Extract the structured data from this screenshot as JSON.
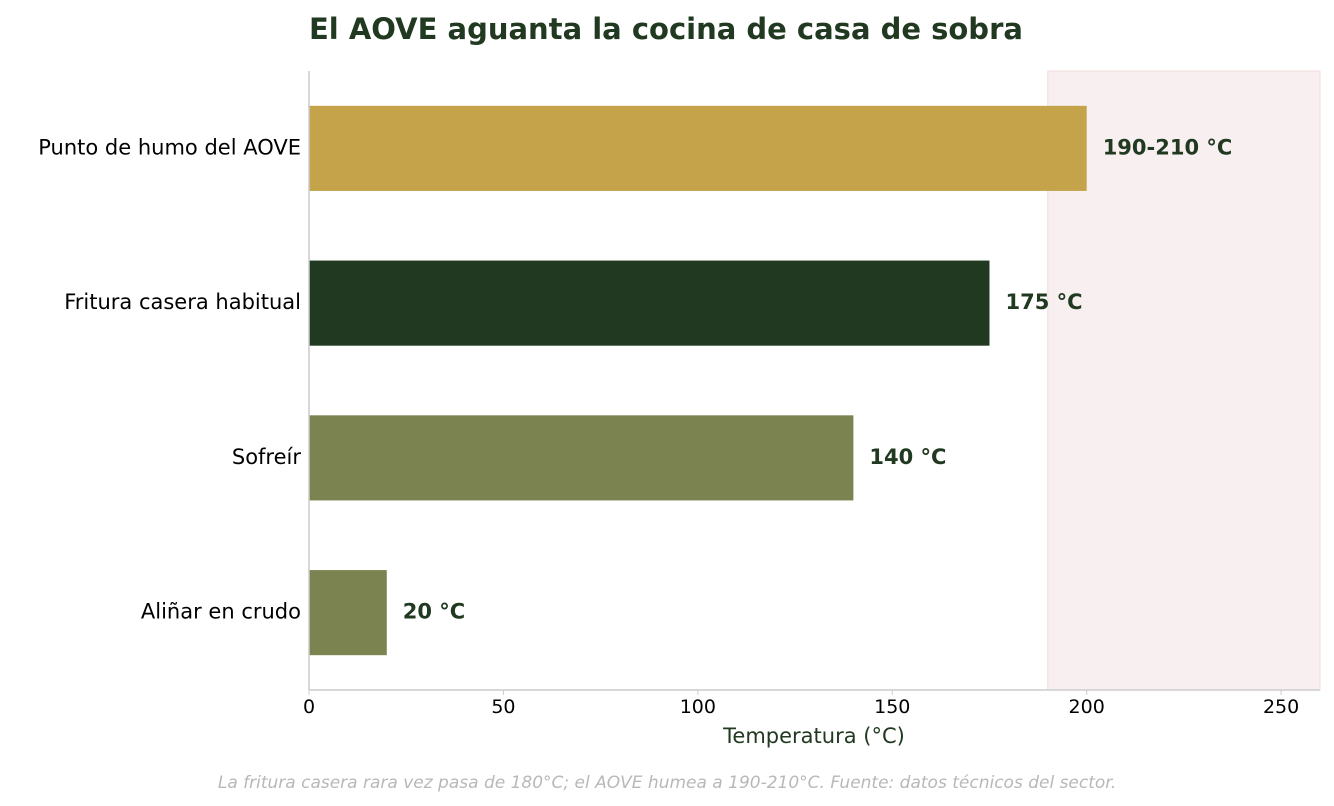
{
  "colors": {
    "title": "#203920",
    "label": "#203920",
    "caption": "#b8b8b8",
    "axis": "#cccccc",
    "zone_fill": "#f8f0f0",
    "zone_stroke": "#efdcdc"
  },
  "chart_data": {
    "type": "bar",
    "orientation": "horizontal",
    "title": "El AOVE aguanta la cocina de casa de sobra",
    "xlabel": "Temperatura (°C)",
    "ylabel": "",
    "xlim": [
      0,
      260
    ],
    "xticks": [
      0,
      50,
      100,
      150,
      200,
      250
    ],
    "grid": false,
    "categories": [
      "Punto de humo del AOVE",
      "Fritura casera habitual",
      "Sofreír",
      "Aliñar en crudo"
    ],
    "values": [
      200,
      175,
      140,
      20
    ],
    "value_labels": [
      "190-210 °C",
      "175 °C",
      "140 °C",
      "20 °C"
    ],
    "bar_colors": [
      "#c5a34a",
      "#203920",
      "#7b8450",
      "#7b8450"
    ],
    "highlight_band": [
      190,
      260
    ],
    "caption": "La fritura casera rara vez pasa de 180°C; el AOVE humea a 190-210°C. Fuente: datos técnicos del sector."
  }
}
